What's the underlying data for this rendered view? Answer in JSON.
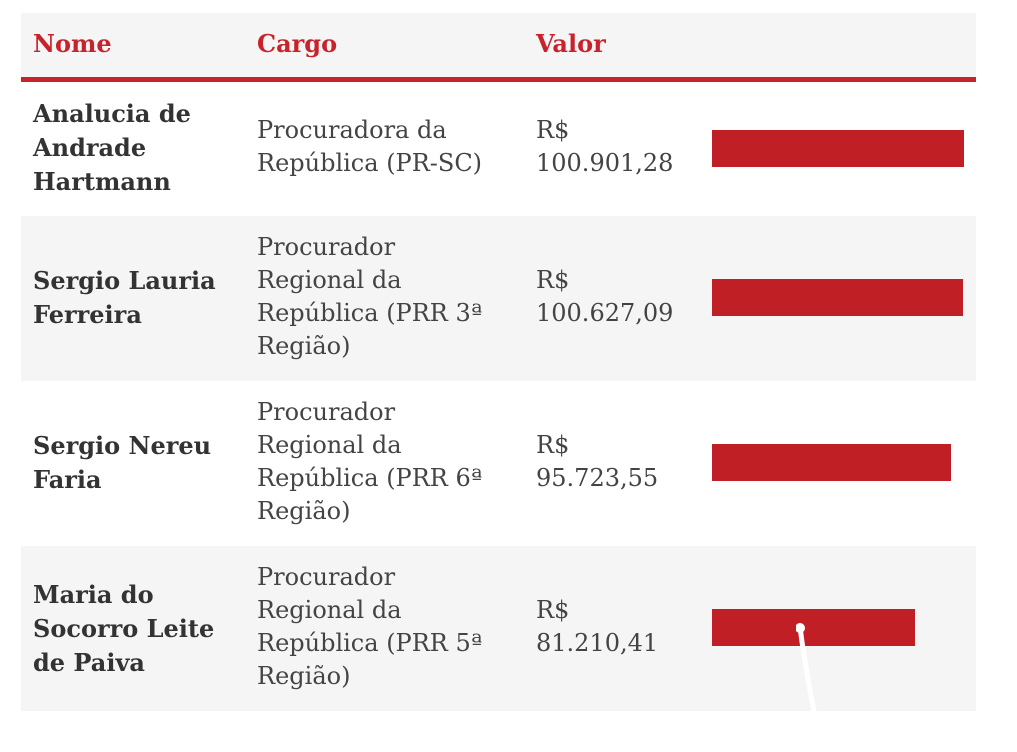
{
  "chart_data": {
    "type": "table",
    "columns": [
      "Nome",
      "Cargo",
      "Valor"
    ],
    "rows": [
      {
        "name_lines": [
          "Analucia de",
          "Andrade",
          "Hartmann"
        ],
        "cargo_lines": [
          "Procuradora da",
          "República (PR-SC)"
        ],
        "valor_lines": [
          "R$",
          "100.901,28"
        ],
        "value": 100901.28
      },
      {
        "name_lines": [
          "Sergio Lauria",
          "Ferreira"
        ],
        "cargo_lines": [
          "Procurador",
          "Regional da",
          "República (PRR 3ª",
          "Região)"
        ],
        "valor_lines": [
          "R$",
          "100.627,09"
        ],
        "value": 100627.09
      },
      {
        "name_lines": [
          "Sergio Nereu",
          "Faria"
        ],
        "cargo_lines": [
          "Procurador",
          "Regional da",
          "República (PRR 6ª",
          "Região)"
        ],
        "valor_lines": [
          "R$",
          "95.723,55"
        ],
        "value": 95723.55
      },
      {
        "name_lines": [
          "Maria do",
          "Socorro Leite",
          "de Paiva"
        ],
        "cargo_lines": [
          "Procurador",
          "Regional da",
          "República (PRR 5ª",
          "Região)"
        ],
        "valor_lines": [
          "R$",
          "81.210,41"
        ],
        "value": 81210.41
      }
    ],
    "value_max": 100901.28,
    "bar_color": "#c01f26",
    "header_color": "#c8232b"
  }
}
